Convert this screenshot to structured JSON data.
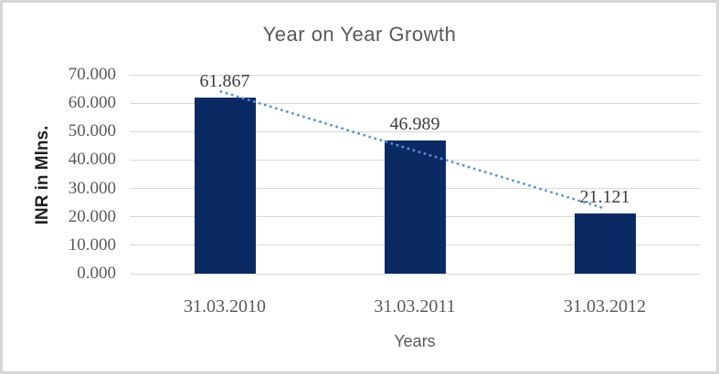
{
  "chart_data": {
    "type": "bar",
    "title": "Year on Year Growth",
    "xlabel": "Years",
    "ylabel": "INR in Mlns.",
    "categories": [
      "31.03.2010",
      "31.03.2011",
      "31.03.2012"
    ],
    "values": [
      61.867,
      46.989,
      21.121
    ],
    "data_labels": [
      "61.867",
      "46.989",
      "21.121"
    ],
    "ylim": [
      0,
      70
    ],
    "ytick_step": 10,
    "ytick_labels": [
      "70.000",
      "60.000",
      "50.000",
      "40.000",
      "30.000",
      "20.000",
      "10.000",
      "0.000"
    ],
    "grid": true,
    "legend": "none",
    "trendline": {
      "type": "linear",
      "style": "dotted"
    },
    "colors": {
      "bar": "#0b2a63",
      "trendline": "#5b8fd2",
      "gridline": "#d9d9d9",
      "title_text": "#595959",
      "tick_text": "#595959",
      "data_label_text": "#3d3d3d",
      "axis_title_text": "#1f1f1f",
      "frame_border": "#d6d6d6",
      "background": "#ffffff"
    }
  }
}
